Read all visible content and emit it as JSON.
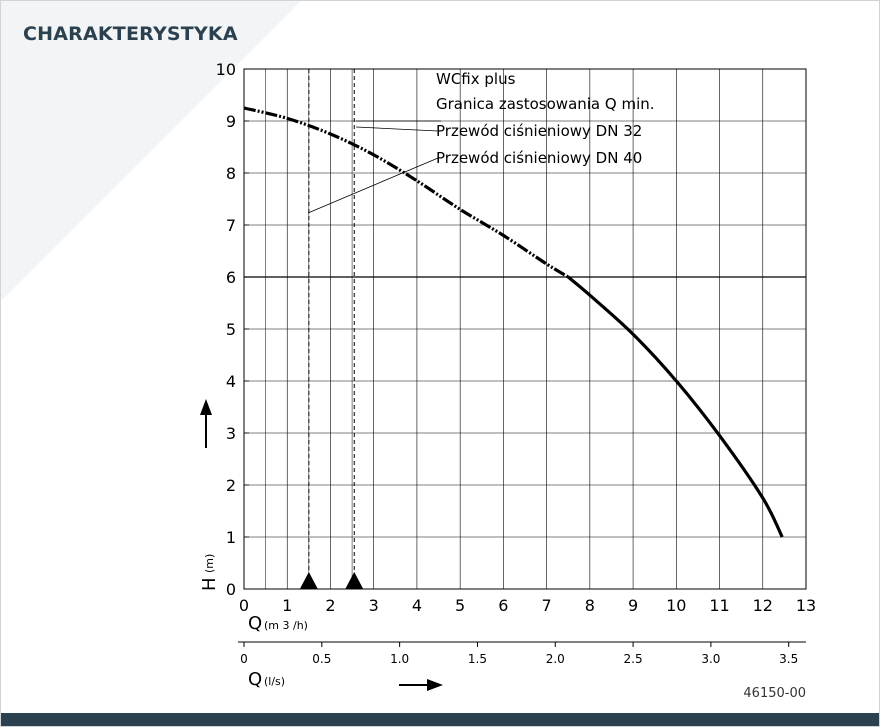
{
  "page": {
    "heading": "CHARAKTERYSTYKA",
    "footer_color": "#2b4150",
    "heading_color": "#2b4150"
  },
  "chart_data": {
    "type": "line",
    "title": "",
    "xlabel": "Q (m 3/h)",
    "xlabel_main": "Q",
    "xlabel_unit": "(m 3 /h)",
    "ylabel": "H (m)",
    "ylabel_main": "H",
    "ylabel_unit": "(m)",
    "xlim": [
      0,
      13
    ],
    "ylim": [
      0,
      10
    ],
    "x_ticks": [
      0,
      1,
      2,
      3,
      4,
      5,
      6,
      7,
      8,
      9,
      10,
      11,
      12,
      13
    ],
    "y_ticks": [
      0,
      1,
      2,
      3,
      4,
      5,
      6,
      7,
      8,
      9,
      10
    ],
    "grid": true,
    "secondary_axis": {
      "label": "Q (l/s)",
      "label_main": "Q",
      "label_unit": "(l/s)",
      "ticks": [
        0,
        0.5,
        1.0,
        1.5,
        2.0,
        2.5,
        3.0,
        3.5
      ],
      "tick_labels": [
        "0",
        "0.5",
        "1.0",
        "1.5",
        "2.0",
        "2.5",
        "3.0",
        "3.5"
      ],
      "factor_m3h_per_ls": 3.6
    },
    "series": [
      {
        "name": "WCfix plus",
        "style": "dash-dot",
        "points": [
          [
            0,
            9.25
          ],
          [
            1,
            9.05
          ],
          [
            2,
            8.75
          ],
          [
            3,
            8.35
          ],
          [
            4,
            7.85
          ],
          [
            5,
            7.3
          ],
          [
            6,
            6.8
          ],
          [
            7,
            6.25
          ],
          [
            7.5,
            6.0
          ]
        ]
      },
      {
        "name": "WCfix plus",
        "style": "solid",
        "points": [
          [
            7.5,
            6.0
          ],
          [
            8,
            5.65
          ],
          [
            9,
            4.9
          ],
          [
            10,
            4.0
          ],
          [
            11,
            2.95
          ],
          [
            12,
            1.75
          ],
          [
            12.45,
            1.0
          ]
        ]
      }
    ],
    "annotations": [
      {
        "text": "WCfix plus"
      },
      {
        "text": "Granica zastosowania Q min."
      },
      {
        "text": "Przewód ciśnieniowy DN 32"
      },
      {
        "text": "Przewód ciśnieniowy DN 40"
      }
    ],
    "qmin_markers": [
      1.5,
      2.55
    ],
    "code": "46150-00"
  }
}
